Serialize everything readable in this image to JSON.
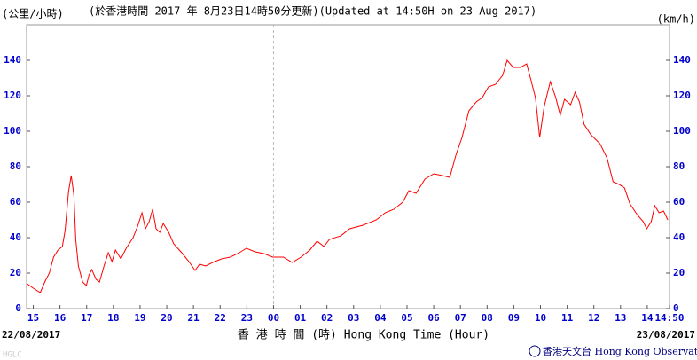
{
  "chart_data": {
    "type": "line",
    "y_unit_zh": "(公里/小時)",
    "title": "(於香港時間 2017 年 8月23日14時50分更新)(Updated at 14:50H on 23 Aug 2017)",
    "y_unit_en": "(km/h)",
    "x_label": "香 港 時 間 (時) Hong Kong Time (Hour)",
    "start_date": "22/08/2017",
    "end_date": "23/08/2017",
    "credit": "香港天文台 Hong Kong Observatory",
    "watermark": "HGLC",
    "xlim": [
      -0.25,
      23.833
    ],
    "ylim": [
      0,
      160
    ],
    "yticks": [
      0,
      20,
      40,
      60,
      80,
      100,
      120,
      140
    ],
    "xticks": [
      {
        "value": 0,
        "label": "15"
      },
      {
        "value": 1,
        "label": "16"
      },
      {
        "value": 2,
        "label": "17"
      },
      {
        "value": 3,
        "label": "18"
      },
      {
        "value": 4,
        "label": "19"
      },
      {
        "value": 5,
        "label": "20"
      },
      {
        "value": 6,
        "label": "21"
      },
      {
        "value": 7,
        "label": "22"
      },
      {
        "value": 8,
        "label": "23"
      },
      {
        "value": 9,
        "label": "00"
      },
      {
        "value": 10,
        "label": "01"
      },
      {
        "value": 11,
        "label": "02"
      },
      {
        "value": 12,
        "label": "03"
      },
      {
        "value": 13,
        "label": "04"
      },
      {
        "value": 14,
        "label": "05"
      },
      {
        "value": 15,
        "label": "06"
      },
      {
        "value": 16,
        "label": "07"
      },
      {
        "value": 17,
        "label": "08"
      },
      {
        "value": 18,
        "label": "09"
      },
      {
        "value": 19,
        "label": "10"
      },
      {
        "value": 20,
        "label": "11"
      },
      {
        "value": 21,
        "label": "12"
      },
      {
        "value": 22,
        "label": "13"
      },
      {
        "value": 23,
        "label": "14"
      },
      {
        "value": 23.833,
        "label": "14:50"
      }
    ],
    "divider_x": 9,
    "series": [
      {
        "color": "#ff0000",
        "x": [
          -0.23,
          0,
          0.26,
          0.43,
          0.6,
          0.76,
          0.93,
          1.09,
          1.19,
          1.32,
          1.42,
          1.52,
          1.59,
          1.69,
          1.85,
          1.99,
          2.09,
          2.19,
          2.35,
          2.48,
          2.65,
          2.81,
          2.95,
          3.08,
          3.28,
          3.48,
          3.74,
          3.91,
          4.07,
          4.2,
          4.34,
          4.47,
          4.6,
          4.74,
          4.87,
          5.07,
          5.26,
          5.56,
          5.83,
          6.06,
          6.23,
          6.46,
          6.72,
          7.05,
          7.38,
          7.72,
          7.98,
          8.31,
          8.64,
          8.97,
          9.37,
          9.7,
          10.03,
          10.36,
          10.63,
          10.89,
          11.09,
          11.52,
          11.85,
          12.35,
          12.85,
          13.18,
          13.51,
          13.84,
          14.07,
          14.34,
          14.67,
          15.0,
          15.33,
          15.6,
          15.83,
          16.06,
          16.32,
          16.59,
          16.82,
          17.05,
          17.32,
          17.58,
          17.75,
          17.98,
          18.25,
          18.48,
          18.64,
          18.81,
          18.97,
          19.14,
          19.37,
          19.57,
          19.74,
          19.9,
          20.13,
          20.3,
          20.46,
          20.63,
          20.89,
          21.23,
          21.49,
          21.72,
          21.95,
          22.15,
          22.35,
          22.62,
          22.85,
          22.98,
          23.15,
          23.28,
          23.44,
          23.61,
          23.77
        ],
        "values": [
          14,
          11.5,
          9,
          15,
          20,
          29,
          33,
          35,
          44,
          66,
          75,
          64,
          39,
          24,
          15,
          13,
          19,
          22,
          16.5,
          15,
          24,
          31.5,
          26.5,
          33,
          28,
          34,
          40,
          46.5,
          54,
          45,
          49,
          56,
          45,
          43,
          48,
          43,
          36.5,
          31.5,
          26.5,
          21.5,
          25,
          24,
          26,
          28,
          29,
          31.5,
          34,
          32,
          31,
          29,
          29,
          26,
          29,
          33,
          38,
          35,
          39,
          41,
          45,
          47,
          50,
          54,
          56,
          60,
          66.5,
          65,
          73,
          76,
          75,
          74,
          86.5,
          96.5,
          111.5,
          116.5,
          119,
          125,
          126.5,
          131.5,
          140,
          136,
          136,
          138,
          129,
          119,
          96.5,
          114,
          128,
          119,
          109,
          118,
          115,
          122,
          116.5,
          104,
          98,
          93,
          85,
          71.5,
          70,
          68,
          59,
          53,
          49,
          45,
          49,
          58,
          54,
          55,
          50
        ]
      }
    ]
  }
}
